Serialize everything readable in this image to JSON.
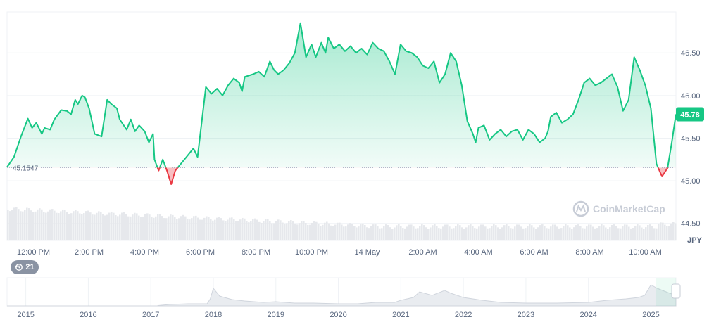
{
  "chart_data": [
    {
      "type": "line",
      "title": "",
      "currency": "JPY",
      "baseline_label": "45.1547",
      "baseline_value": 45.1547,
      "current_price_label": "45.78",
      "current_price": 45.78,
      "ylim": [
        44.3,
        46.98
      ],
      "y_ticks": [
        "46.50",
        "46.00",
        "45.50",
        "45.00",
        "44.50"
      ],
      "y_tick_values": [
        46.5,
        46.0,
        45.5,
        45.0,
        44.5
      ],
      "x_ticks": [
        "12:00 PM",
        "2:00 PM",
        "4:00 PM",
        "6:00 PM",
        "8:00 PM",
        "10:00 PM",
        "14 May",
        "2:00 AM",
        "4:00 AM",
        "6:00 AM",
        "8:00 AM",
        "10:00 AM"
      ],
      "x_tick_hours": [
        12,
        14,
        16,
        18,
        20,
        22,
        24,
        26,
        28,
        30,
        32,
        34
      ],
      "x_range_hours": [
        11.05,
        35.1
      ],
      "grid": true,
      "colors": {
        "up": "#16c784",
        "down": "#ea3943",
        "badge": "#16c784",
        "volume": "#e6e8ec"
      },
      "series": [
        {
          "x_hours": [
            11.05,
            11.3,
            11.55,
            11.8,
            11.95,
            12.1,
            12.3,
            12.4,
            12.6,
            12.75,
            13.0,
            13.2,
            13.35,
            13.5,
            13.6,
            13.75,
            13.85,
            14.0,
            14.1,
            14.2,
            14.45,
            14.65,
            14.8,
            15.0,
            15.1,
            15.35,
            15.5,
            15.65,
            15.8,
            16.0,
            16.15,
            16.3,
            16.35,
            16.5,
            16.65,
            16.8,
            16.95,
            17.1,
            17.3,
            17.5,
            17.75,
            17.9,
            18.0,
            18.2,
            18.4,
            18.6,
            18.8,
            19.0,
            19.2,
            19.4,
            19.5,
            19.6,
            19.9,
            20.1,
            20.3,
            20.5,
            20.65,
            20.8,
            21.0,
            21.2,
            21.4,
            21.6,
            21.8,
            22.0,
            22.15,
            22.35,
            22.5,
            22.6,
            22.8,
            23.0,
            23.2,
            23.4,
            23.6,
            23.8,
            24.0,
            24.2,
            24.4,
            24.6,
            24.8,
            25.0,
            25.2,
            25.4,
            25.6,
            25.8,
            26.0,
            26.2,
            26.4,
            26.6,
            26.8,
            27.0,
            27.2,
            27.4,
            27.6,
            27.8,
            27.9,
            28.0,
            28.2,
            28.4,
            28.6,
            28.8,
            29.0,
            29.2,
            29.4,
            29.6,
            29.8,
            30.0,
            30.2,
            30.4,
            30.5,
            30.6,
            30.8,
            31.0,
            31.2,
            31.4,
            31.6,
            31.8,
            32.0,
            32.2,
            32.4,
            32.6,
            32.8,
            33.0,
            33.2,
            33.4,
            33.6,
            33.8,
            34.0,
            34.2,
            34.4,
            34.6,
            34.8,
            34.95,
            35.1
          ],
          "values": [
            45.16,
            45.28,
            45.52,
            45.73,
            45.62,
            45.68,
            45.55,
            45.62,
            45.6,
            45.72,
            45.83,
            45.82,
            45.78,
            45.95,
            45.9,
            46.0,
            45.98,
            45.85,
            45.7,
            45.55,
            45.52,
            45.95,
            45.9,
            45.85,
            45.72,
            45.6,
            45.72,
            45.58,
            45.65,
            45.58,
            45.45,
            45.55,
            45.25,
            45.12,
            45.25,
            45.12,
            44.96,
            45.12,
            45.2,
            45.28,
            45.38,
            45.28,
            45.55,
            46.1,
            46.02,
            46.08,
            46.0,
            46.12,
            46.2,
            46.15,
            46.05,
            46.22,
            46.25,
            46.28,
            46.22,
            46.4,
            46.3,
            46.25,
            46.3,
            46.38,
            46.5,
            46.85,
            46.45,
            46.6,
            46.45,
            46.62,
            46.5,
            46.68,
            46.55,
            46.6,
            46.52,
            46.58,
            46.5,
            46.55,
            46.48,
            46.62,
            46.55,
            46.52,
            46.4,
            46.25,
            46.6,
            46.52,
            46.5,
            46.45,
            46.35,
            46.32,
            46.4,
            46.15,
            46.25,
            46.5,
            46.4,
            46.12,
            45.7,
            45.55,
            45.45,
            45.62,
            45.65,
            45.48,
            45.55,
            45.6,
            45.52,
            45.58,
            45.6,
            45.48,
            45.6,
            45.55,
            45.45,
            45.5,
            45.58,
            45.75,
            45.8,
            45.68,
            45.72,
            45.78,
            45.95,
            46.15,
            46.2,
            46.12,
            46.15,
            46.2,
            46.25,
            46.1,
            45.82,
            45.95,
            46.45,
            46.3,
            46.12,
            45.85,
            45.2,
            45.05,
            45.15,
            45.45,
            45.78
          ]
        }
      ]
    },
    {
      "type": "area",
      "title": "",
      "x_ticks": [
        "2015",
        "2016",
        "2017",
        "2018",
        "2019",
        "2020",
        "2021",
        "2022",
        "2023",
        "2024",
        "2025"
      ],
      "x_tick_years": [
        2015,
        2016,
        2017,
        2018,
        2019,
        2020,
        2021,
        2022,
        2023,
        2024,
        2025
      ],
      "x_range_years": [
        2014.7,
        2025.4
      ],
      "series": [
        {
          "x_years": [
            2014.7,
            2017.1,
            2017.12,
            2017.3,
            2017.6,
            2017.9,
            2017.95,
            2018.0,
            2018.1,
            2018.3,
            2018.5,
            2018.8,
            2019.0,
            2019.3,
            2019.6,
            2020.0,
            2020.3,
            2020.6,
            2020.9,
            2021.0,
            2021.2,
            2021.3,
            2021.5,
            2021.7,
            2021.8,
            2022.0,
            2022.3,
            2022.6,
            2023.0,
            2023.5,
            2024.0,
            2024.3,
            2024.6,
            2024.8,
            2024.9,
            2025.0,
            2025.1,
            2025.3,
            2025.4
          ],
          "values": [
            0,
            0,
            0.5,
            2,
            3,
            3,
            10,
            25,
            14,
            9,
            7,
            5,
            6,
            4,
            4,
            3,
            3,
            5,
            5,
            8,
            12,
            20,
            15,
            22,
            18,
            12,
            8,
            5,
            4,
            4,
            5,
            8,
            10,
            12,
            15,
            30,
            25,
            18,
            15
          ]
        }
      ]
    }
  ],
  "watermark": {
    "text": "CoinMarketCap"
  },
  "history_badge": {
    "count": "21",
    "icon": "history-icon"
  },
  "range_handle": {
    "icon": "handle-grip-icon"
  }
}
